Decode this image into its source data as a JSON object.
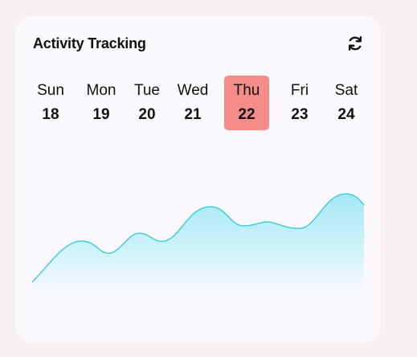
{
  "card": {
    "title": "Activity Tracking",
    "refresh_icon": "refresh-icon"
  },
  "days": [
    {
      "name": "Sun",
      "date": "18",
      "active": false
    },
    {
      "name": "Mon",
      "date": "19",
      "active": false
    },
    {
      "name": "Tue",
      "date": "20",
      "active": false
    },
    {
      "name": "Wed",
      "date": "21",
      "active": false
    },
    {
      "name": "Thu",
      "date": "22",
      "active": true
    },
    {
      "name": "Fri",
      "date": "23",
      "active": false
    },
    {
      "name": "Sat",
      "date": "24",
      "active": false
    }
  ],
  "colors": {
    "accent": "#f48c8a",
    "line": "#2ec9dc",
    "area_top": "#a3e8f6",
    "card_bg": "#fbf9fe",
    "page_bg": "#f6f1f0"
  }
}
